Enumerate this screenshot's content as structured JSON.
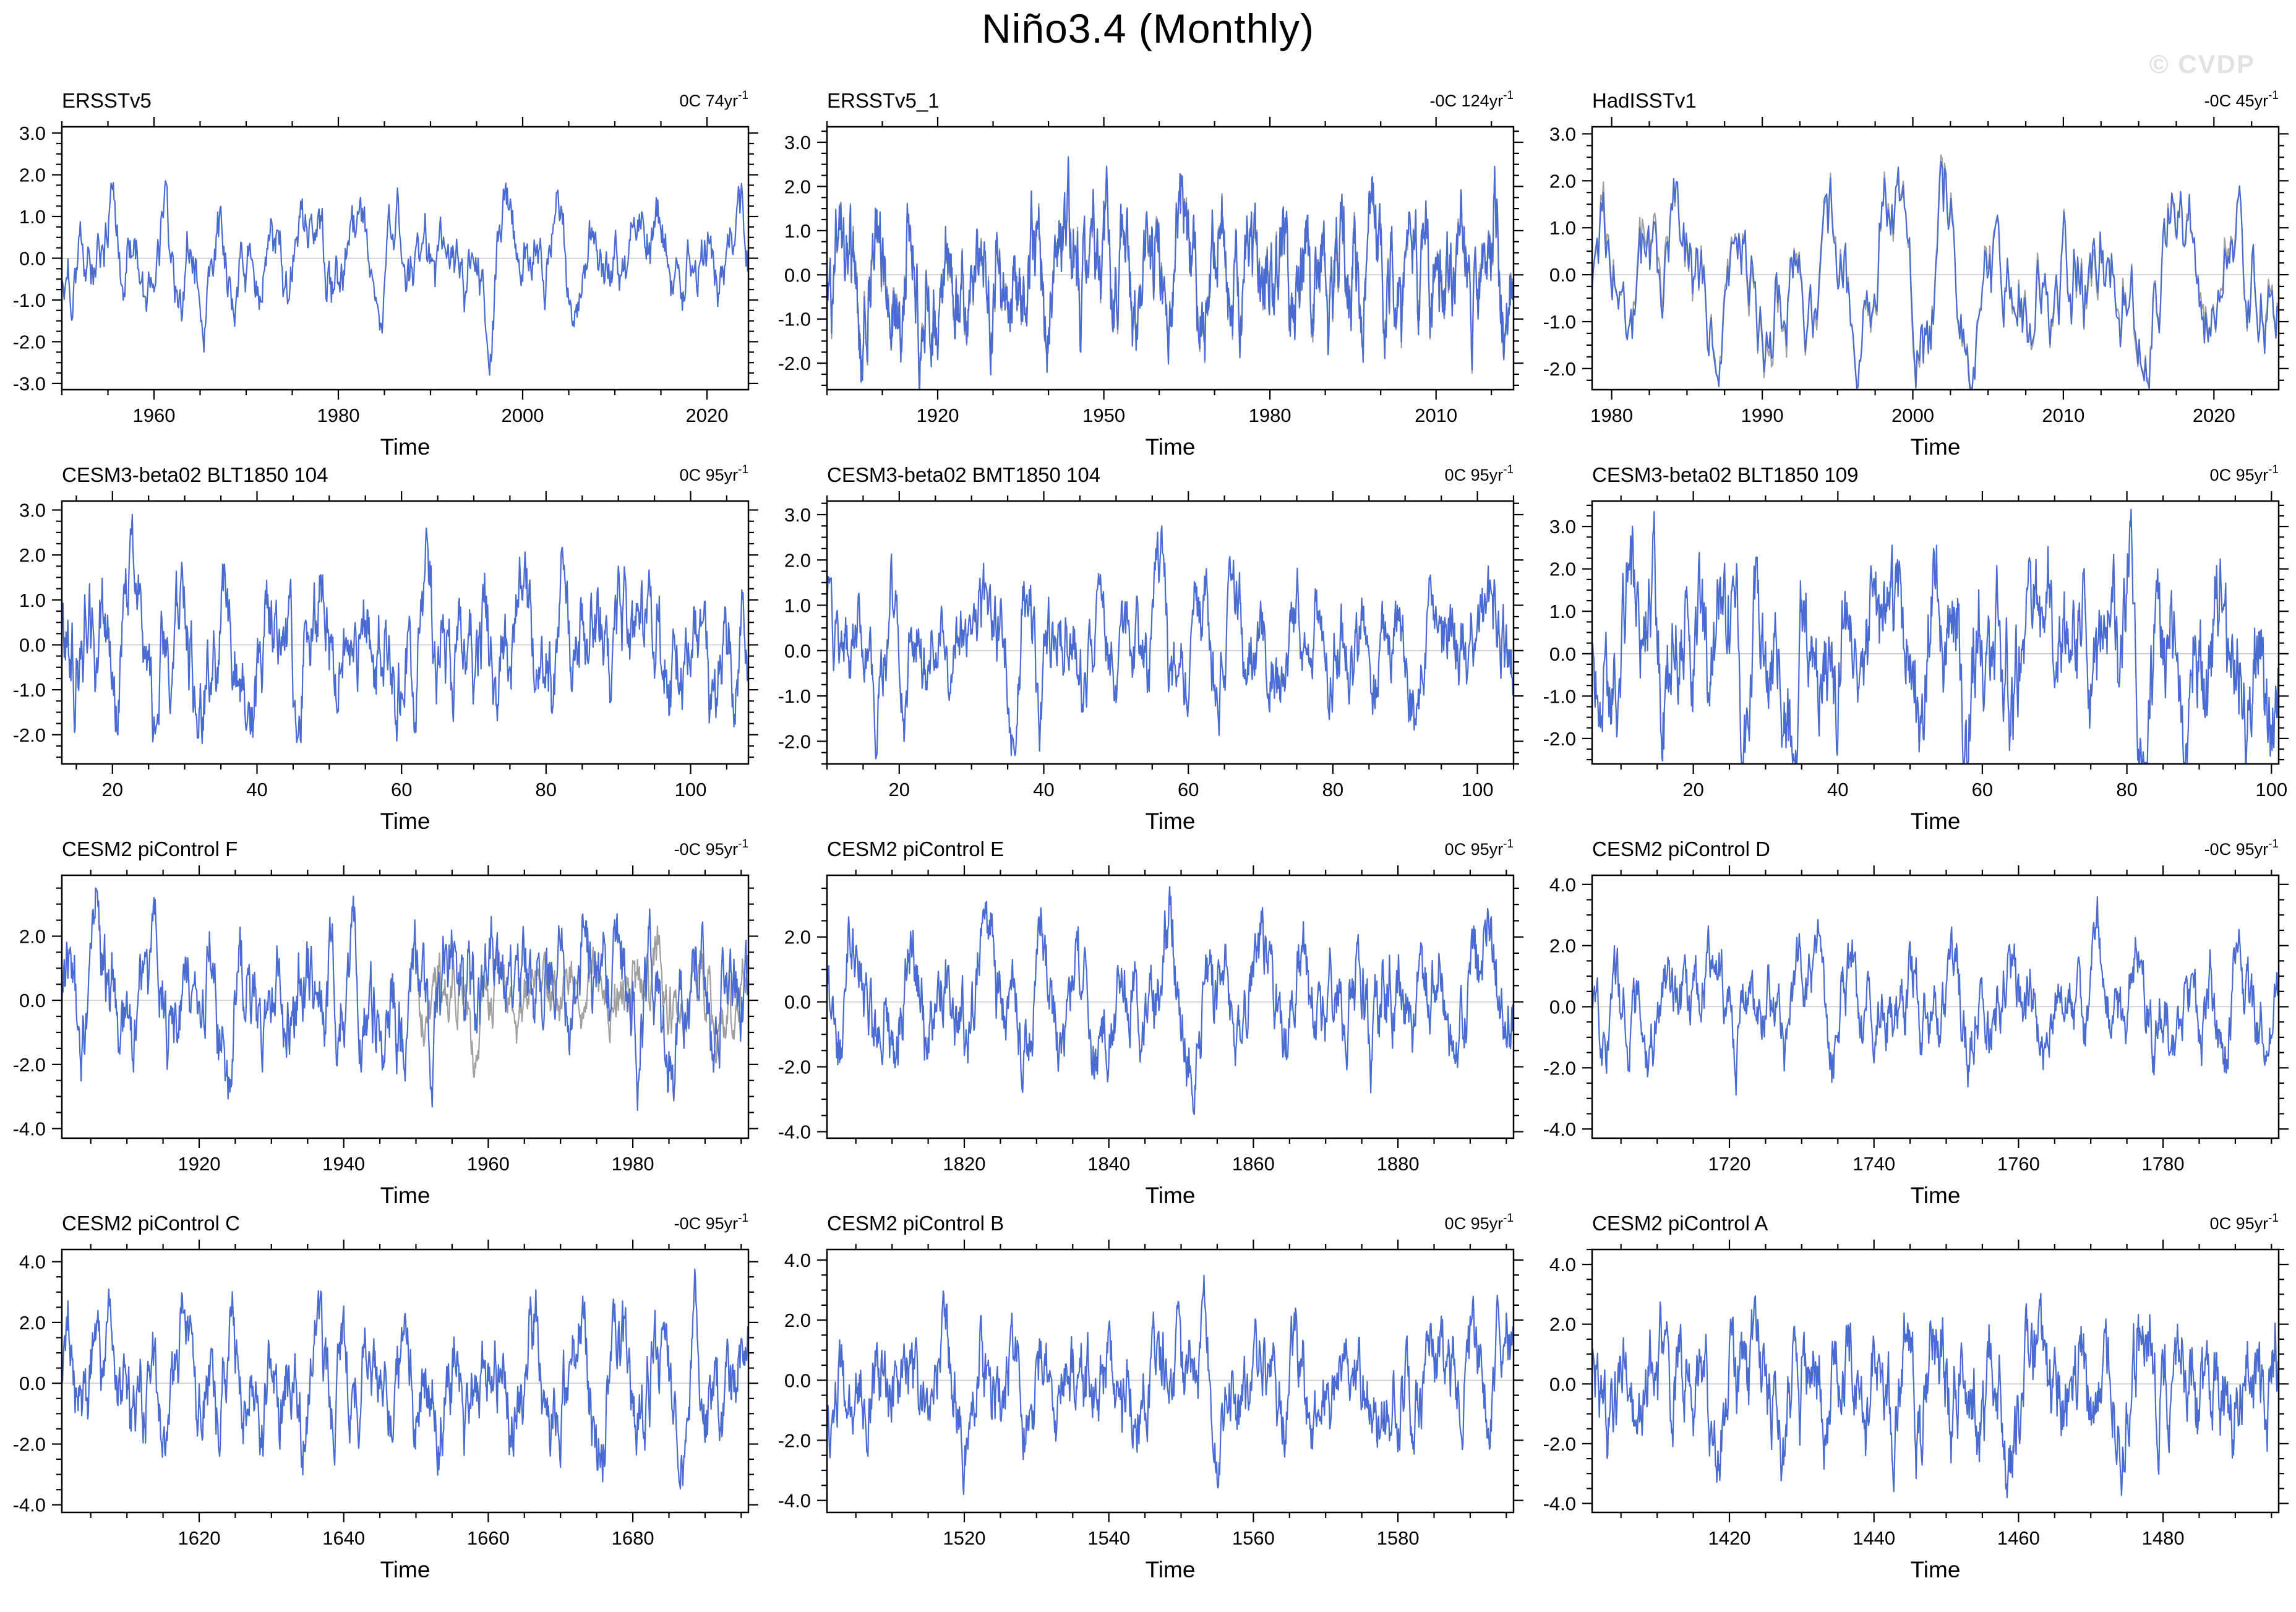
{
  "header": {
    "title": "Niño3.4 (Monthly)",
    "watermark": "© CVDP"
  },
  "colors": {
    "line_primary": "#4a6bd1",
    "line_secondary": "#a0a0a0",
    "zero_line": "#cccccc",
    "frame": "#000000",
    "watermark": "#e2e2e2"
  },
  "chart_data": [
    {
      "type": "line",
      "title": "ERSSTv5",
      "trend_label": "0C 74yr",
      "trend_exponent": "-1",
      "xlabel": "Time",
      "xlim": [
        1950,
        2024.5
      ],
      "xticks": [
        1960,
        1980,
        2000,
        2020
      ],
      "xtick_labels": [
        "1960",
        "1980",
        "2000",
        "2020"
      ],
      "x_minor_step": 5,
      "ylim": [
        -3.15,
        3.15
      ],
      "yticks": [
        -3,
        -2,
        -1,
        0,
        1,
        2,
        3
      ],
      "ytick_labels": [
        "-3.0",
        "-2.0",
        "-1.0",
        "0.0",
        "1.0",
        "2.0",
        "3.0"
      ],
      "y_minor_step": 0.25,
      "zero_line": true,
      "series": [
        {
          "name": "Niño3.4 SST anomaly",
          "color": "#4a6bd1",
          "approx_peak": 2.8,
          "seed": 101
        }
      ],
      "secondary_series": null
    },
    {
      "type": "line",
      "title": "ERSSTv5_1",
      "trend_label": "-0C 124yr",
      "trend_exponent": "-1",
      "xlabel": "Time",
      "xlim": [
        1900,
        2024
      ],
      "xticks": [
        1920,
        1950,
        1980,
        2010
      ],
      "xtick_labels": [
        "1920",
        "1950",
        "1980",
        "2010"
      ],
      "x_minor_step": 10,
      "ylim": [
        -2.6,
        3.35
      ],
      "yticks": [
        -2,
        -1,
        0,
        1,
        2,
        3
      ],
      "ytick_labels": [
        "-2.0",
        "-1.0",
        "0.0",
        "1.0",
        "2.0",
        "3.0"
      ],
      "y_minor_step": 0.25,
      "zero_line": true,
      "series": [
        {
          "name": "Niño3.4 SST anomaly",
          "color": "#4a6bd1",
          "approx_peak": 2.85,
          "seed": 102
        }
      ],
      "secondary_series": {
        "name": "Niño3.4 SST anomaly (alt)",
        "color": "#a0a0a0",
        "mode": "follow",
        "offset": 0.12,
        "seed": 202,
        "start_frac": 0,
        "approx_peak": 2.85
      }
    },
    {
      "type": "line",
      "title": "HadISSTv1",
      "trend_label": "-0C 45yr",
      "trend_exponent": "-1",
      "xlabel": "Time",
      "xlim": [
        1978.7,
        2024.3
      ],
      "xticks": [
        1980,
        1990,
        2000,
        2010,
        2020
      ],
      "xtick_labels": [
        "1980",
        "1990",
        "2000",
        "2010",
        "2020"
      ],
      "x_minor_step": 2.5,
      "ylim": [
        -2.45,
        3.15
      ],
      "yticks": [
        -2,
        -1,
        0,
        1,
        2,
        3
      ],
      "ytick_labels": [
        "-2.0",
        "-1.0",
        "0.0",
        "1.0",
        "2.0",
        "3.0"
      ],
      "y_minor_step": 0.25,
      "zero_line": true,
      "series": [
        {
          "name": "Niño3.4 SST anomaly",
          "color": "#4a6bd1",
          "approx_peak": 2.85,
          "seed": 103
        }
      ],
      "secondary_series": {
        "name": "Niño3.4 SST anomaly (alt)",
        "color": "#a0a0a0",
        "mode": "follow",
        "offset": 0.2,
        "seed": 203,
        "start_frac": 0,
        "approx_peak": 2.85
      }
    },
    {
      "type": "line",
      "title": "CESM3-beta02 BLT1850 104",
      "trend_label": "0C 95yr",
      "trend_exponent": "-1",
      "xlabel": "Time",
      "xlim": [
        13,
        108
      ],
      "xticks": [
        20,
        40,
        60,
        80,
        100
      ],
      "xtick_labels": [
        "20",
        "40",
        "60",
        "80",
        "100"
      ],
      "x_minor_step": 5,
      "ylim": [
        -2.65,
        3.2
      ],
      "yticks": [
        -2,
        -1,
        0,
        1,
        2,
        3
      ],
      "ytick_labels": [
        "-2.0",
        "-1.0",
        "0.0",
        "1.0",
        "2.0",
        "3.0"
      ],
      "y_minor_step": 0.25,
      "zero_line": true,
      "series": [
        {
          "name": "Niño3.4 SST anomaly",
          "color": "#4a6bd1",
          "approx_peak": 2.9,
          "seed": 104
        }
      ],
      "secondary_series": null
    },
    {
      "type": "line",
      "title": "CESM3-beta02 BMT1850 104",
      "trend_label": "0C 95yr",
      "trend_exponent": "-1",
      "xlabel": "Time",
      "xlim": [
        10,
        105
      ],
      "xticks": [
        20,
        40,
        60,
        80,
        100
      ],
      "xtick_labels": [
        "20",
        "40",
        "60",
        "80",
        "100"
      ],
      "x_minor_step": 5,
      "ylim": [
        -2.5,
        3.3
      ],
      "yticks": [
        -2,
        -1,
        0,
        1,
        2,
        3
      ],
      "ytick_labels": [
        "-2.0",
        "-1.0",
        "0.0",
        "1.0",
        "2.0",
        "3.0"
      ],
      "y_minor_step": 0.25,
      "zero_line": true,
      "series": [
        {
          "name": "Niño3.4 SST anomaly",
          "color": "#4a6bd1",
          "approx_peak": 2.75,
          "seed": 105
        }
      ],
      "secondary_series": null
    },
    {
      "type": "line",
      "title": "CESM3-beta02 BLT1850 109",
      "trend_label": "0C 95yr",
      "trend_exponent": "-1",
      "xlabel": "Time",
      "xlim": [
        6,
        101
      ],
      "xticks": [
        20,
        40,
        60,
        80,
        100
      ],
      "xtick_labels": [
        "20",
        "40",
        "60",
        "80",
        "100"
      ],
      "x_minor_step": 5,
      "ylim": [
        -2.6,
        3.6
      ],
      "yticks": [
        -2,
        -1,
        0,
        1,
        2,
        3
      ],
      "ytick_labels": [
        "-2.0",
        "-1.0",
        "0.0",
        "1.0",
        "2.0",
        "3.0"
      ],
      "y_minor_step": 0.25,
      "zero_line": true,
      "series": [
        {
          "name": "Niño3.4 SST anomaly",
          "color": "#4a6bd1",
          "approx_peak": 3.4,
          "seed": 106
        }
      ],
      "secondary_series": null
    },
    {
      "type": "line",
      "title": "CESM2 piControl F",
      "trend_label": "-0C 95yr",
      "trend_exponent": "-1",
      "xlabel": "Time",
      "xlim": [
        1901,
        1996
      ],
      "xticks": [
        1920,
        1940,
        1960,
        1980
      ],
      "xtick_labels": [
        "1920",
        "1940",
        "1960",
        "1980"
      ],
      "x_minor_step": 5,
      "ylim": [
        -4.3,
        3.9
      ],
      "yticks": [
        -4,
        -2,
        0,
        2
      ],
      "ytick_labels": [
        "-4.0",
        "-2.0",
        "0.0",
        "2.0"
      ],
      "y_minor_step": 0.5,
      "zero_line": true,
      "series": [
        {
          "name": "Niño3.4 SST anomaly",
          "color": "#4a6bd1",
          "approx_peak": 3.5,
          "seed": 107
        }
      ],
      "secondary_series": {
        "name": "Niño3.4 SST anomaly (overlapping segment)",
        "color": "#a0a0a0",
        "mode": "independent",
        "offset": 0,
        "seed": 207,
        "start_frac": 0.515,
        "approx_peak": 2.4
      }
    },
    {
      "type": "line",
      "title": "CESM2 piControl E",
      "trend_label": "0C 95yr",
      "trend_exponent": "-1",
      "xlabel": "Time",
      "xlim": [
        1801,
        1896
      ],
      "xticks": [
        1820,
        1840,
        1860,
        1880
      ],
      "xtick_labels": [
        "1820",
        "1840",
        "1860",
        "1880"
      ],
      "x_minor_step": 5,
      "ylim": [
        -4.2,
        3.9
      ],
      "yticks": [
        -4,
        -2,
        0,
        2
      ],
      "ytick_labels": [
        "-4.0",
        "-2.0",
        "0.0",
        "2.0"
      ],
      "y_minor_step": 0.5,
      "zero_line": true,
      "series": [
        {
          "name": "Niño3.4 SST anomaly",
          "color": "#4a6bd1",
          "approx_peak": 3.55,
          "seed": 108
        }
      ],
      "secondary_series": null
    },
    {
      "type": "line",
      "title": "CESM2 piControl D",
      "trend_label": "-0C 95yr",
      "trend_exponent": "-1",
      "xlabel": "Time",
      "xlim": [
        1701,
        1796
      ],
      "xticks": [
        1720,
        1740,
        1760,
        1780
      ],
      "xtick_labels": [
        "1720",
        "1740",
        "1760",
        "1780"
      ],
      "x_minor_step": 5,
      "ylim": [
        -4.3,
        4.3
      ],
      "yticks": [
        -4,
        -2,
        0,
        2,
        4
      ],
      "ytick_labels": [
        "-4.0",
        "-2.0",
        "0.0",
        "2.0",
        "4.0"
      ],
      "y_minor_step": 0.5,
      "zero_line": true,
      "series": [
        {
          "name": "Niño3.4 SST anomaly",
          "color": "#4a6bd1",
          "approx_peak": 3.6,
          "seed": 109
        }
      ],
      "secondary_series": null
    },
    {
      "type": "line",
      "title": "CESM2 piControl C",
      "trend_label": "-0C 95yr",
      "trend_exponent": "-1",
      "xlabel": "Time",
      "xlim": [
        1601,
        1696
      ],
      "xticks": [
        1620,
        1640,
        1660,
        1680
      ],
      "xtick_labels": [
        "1620",
        "1640",
        "1660",
        "1680"
      ],
      "x_minor_step": 5,
      "ylim": [
        -4.25,
        4.4
      ],
      "yticks": [
        -4,
        -2,
        0,
        2,
        4
      ],
      "ytick_labels": [
        "-4.0",
        "-2.0",
        "0.0",
        "2.0",
        "4.0"
      ],
      "y_minor_step": 0.5,
      "zero_line": true,
      "series": [
        {
          "name": "Niño3.4 SST anomaly",
          "color": "#4a6bd1",
          "approx_peak": 3.75,
          "seed": 110
        }
      ],
      "secondary_series": null
    },
    {
      "type": "line",
      "title": "CESM2 piControl B",
      "trend_label": "0C 95yr",
      "trend_exponent": "-1",
      "xlabel": "Time",
      "xlim": [
        1501,
        1596
      ],
      "xticks": [
        1520,
        1540,
        1560,
        1580
      ],
      "xtick_labels": [
        "1520",
        "1540",
        "1560",
        "1580"
      ],
      "x_minor_step": 5,
      "ylim": [
        -4.4,
        4.35
      ],
      "yticks": [
        -4,
        -2,
        0,
        2,
        4
      ],
      "ytick_labels": [
        "-4.0",
        "-2.0",
        "0.0",
        "2.0",
        "4.0"
      ],
      "y_minor_step": 0.5,
      "zero_line": true,
      "series": [
        {
          "name": "Niño3.4 SST anomaly",
          "color": "#4a6bd1",
          "approx_peak": 3.8,
          "seed": 111
        }
      ],
      "secondary_series": null
    },
    {
      "type": "line",
      "title": "CESM2 piControl A",
      "trend_label": "0C 95yr",
      "trend_exponent": "-1",
      "xlabel": "Time",
      "xlim": [
        1401,
        1496
      ],
      "xticks": [
        1420,
        1440,
        1460,
        1480
      ],
      "xtick_labels": [
        "1420",
        "1440",
        "1460",
        "1480"
      ],
      "x_minor_step": 5,
      "ylim": [
        -4.3,
        4.5
      ],
      "yticks": [
        -4,
        -2,
        0,
        2,
        4
      ],
      "ytick_labels": [
        "-4.0",
        "-2.0",
        "0.0",
        "2.0",
        "4.0"
      ],
      "y_minor_step": 0.5,
      "zero_line": true,
      "series": [
        {
          "name": "Niño3.4 SST anomaly",
          "color": "#4a6bd1",
          "approx_peak": 3.8,
          "seed": 112
        }
      ],
      "secondary_series": null
    }
  ]
}
